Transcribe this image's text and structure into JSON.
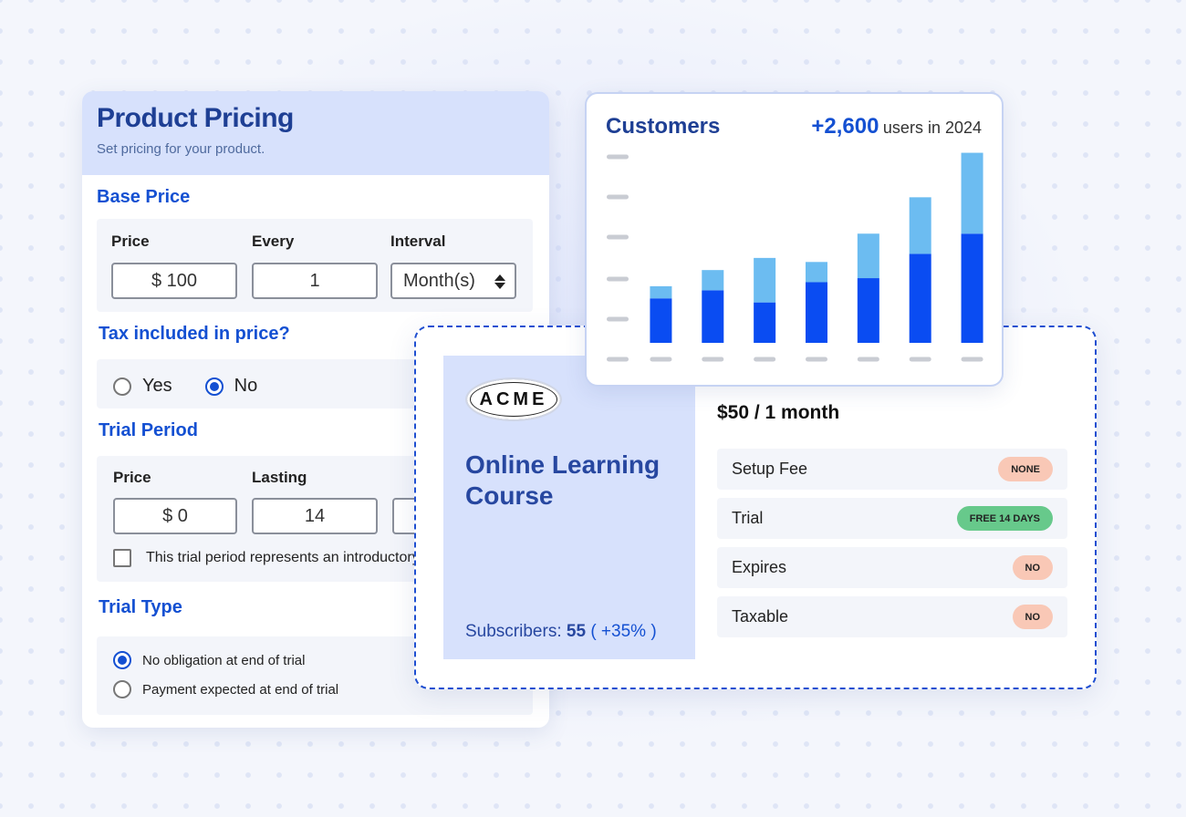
{
  "pricing": {
    "title": "Product Pricing",
    "subtitle": "Set pricing for your product.",
    "base_price": {
      "heading": "Base Price",
      "labels": [
        "Price",
        "Every",
        "Interval"
      ],
      "price": "$ 100",
      "every": "1",
      "interval": "Month(s)"
    },
    "tax": {
      "heading": "Tax included in price?",
      "options": [
        "Yes",
        "No"
      ],
      "selected": 1
    },
    "trial": {
      "heading": "Trial Period",
      "labels": [
        "Price",
        "Lasting"
      ],
      "price": "$ 0",
      "lasting": "14",
      "checkbox": "This trial period represents an introductory"
    },
    "trial_type": {
      "heading": "Trial Type",
      "options": [
        "No obligation at end of trial",
        "Payment expected at end of trial"
      ],
      "selected": 0
    }
  },
  "customers": {
    "title": "Customers",
    "highlight": "+2,600",
    "caption": "users in 2024",
    "chart_data": {
      "type": "bar",
      "stacked": true,
      "ylim": [
        0,
        4.6
      ],
      "series": [
        {
          "color": "#0a4cf2",
          "values": [
            1.1,
            1.3,
            1.0,
            1.5,
            1.6,
            2.2,
            2.7
          ]
        },
        {
          "color": "#6cbcf1",
          "values": [
            0.3,
            0.5,
            1.1,
            0.5,
            1.1,
            1.4,
            2.0
          ]
        }
      ]
    }
  },
  "plan": {
    "logo": "ACME",
    "name": "Online Learning Course",
    "subscribers_label": "Subscribers:",
    "subscribers": "55",
    "change": "( +35% )",
    "price": "$50 / 1 month",
    "rows": [
      {
        "label": "Setup Fee",
        "badge": "NONE",
        "badge_color": "#f9c8b6"
      },
      {
        "label": "Trial",
        "badge": "FREE 14 DAYS",
        "badge_color": "#67c98b"
      },
      {
        "label": "Expires",
        "badge": "NO",
        "badge_color": "#f9c8b6"
      },
      {
        "label": "Taxable",
        "badge": "NO",
        "badge_color": "#f9c8b6"
      }
    ]
  }
}
